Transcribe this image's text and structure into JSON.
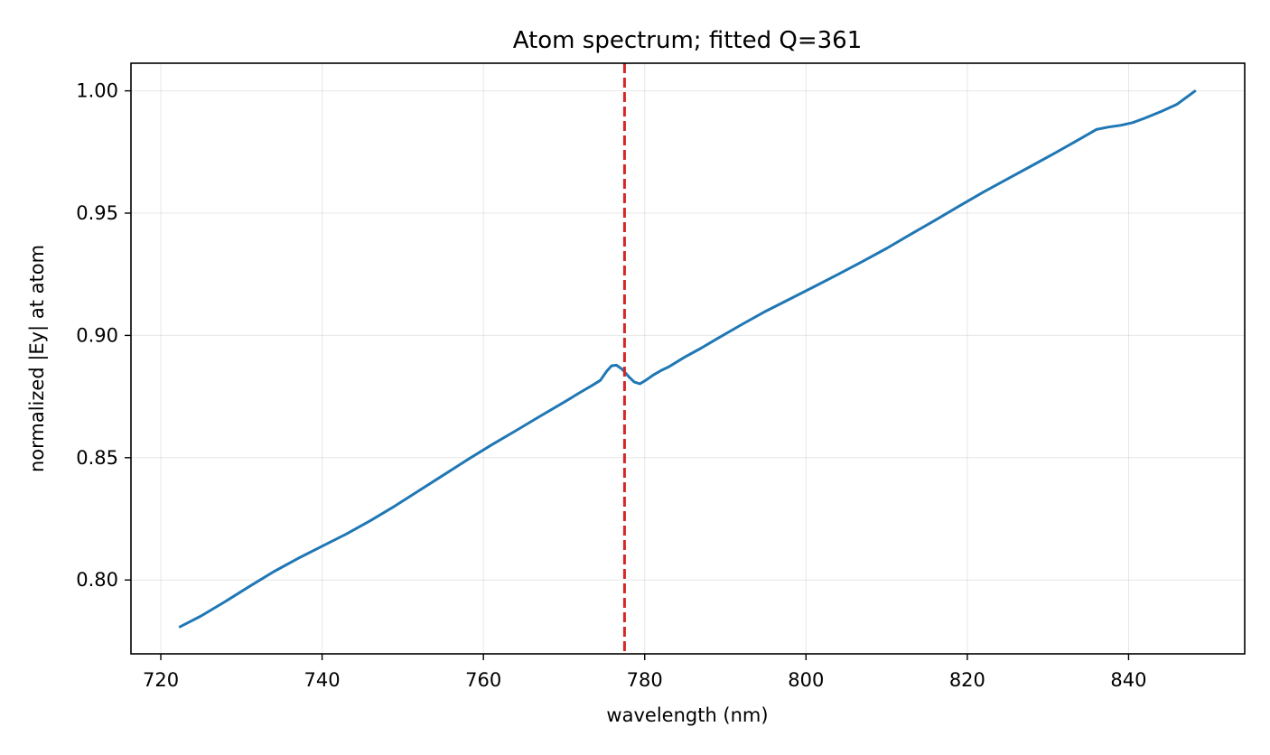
{
  "chart_data": {
    "type": "line",
    "title": "Atom spectrum; fitted Q=361",
    "xlabel": "wavelength (nm)",
    "ylabel": "normalized |Ey| at atom",
    "xlim": [
      716.3,
      854.4
    ],
    "ylim": [
      0.7698,
      1.0113
    ],
    "grid": true,
    "xticks": [
      720,
      740,
      760,
      780,
      800,
      820,
      840
    ],
    "yticks": [
      0.8,
      0.85,
      0.9,
      0.95,
      1.0
    ],
    "xtick_labels": [
      "720",
      "740",
      "760",
      "780",
      "800",
      "820",
      "840"
    ],
    "ytick_labels": [
      "0.80",
      "0.85",
      "0.90",
      "0.95",
      "1.00"
    ],
    "series": [
      {
        "color": "#1f77b4",
        "x": [
          722.4,
          725.0,
          728.0,
          731.0,
          734.0,
          737.0,
          740.0,
          743.0,
          746.0,
          749.0,
          752.0,
          755.0,
          758.0,
          761.0,
          764.0,
          767.0,
          770.0,
          772.0,
          773.5,
          774.5,
          775.3,
          775.9,
          776.5,
          777.2,
          778.0,
          778.7,
          779.4,
          780.2,
          781.0,
          782.0,
          783.0,
          784.0,
          785.0,
          787.0,
          789.0,
          792.0,
          795.0,
          798.0,
          801.0,
          804.0,
          807.0,
          810.0,
          813.0,
          816.0,
          819.0,
          822.0,
          825.0,
          828.0,
          831.0,
          834.0,
          836.0,
          837.5,
          839.0,
          840.5,
          842.0,
          844.0,
          846.0,
          848.2
        ],
        "y": [
          0.7809,
          0.7853,
          0.7912,
          0.7974,
          0.8034,
          0.8088,
          0.8138,
          0.8188,
          0.8243,
          0.8302,
          0.8365,
          0.8428,
          0.8491,
          0.8552,
          0.861,
          0.8669,
          0.8727,
          0.8767,
          0.8796,
          0.8816,
          0.8854,
          0.8876,
          0.8878,
          0.8862,
          0.8832,
          0.881,
          0.8802,
          0.8818,
          0.8837,
          0.8856,
          0.8872,
          0.8892,
          0.8912,
          0.8948,
          0.8987,
          0.9044,
          0.9099,
          0.9149,
          0.9199,
          0.925,
          0.9302,
          0.9356,
          0.9414,
          0.9471,
          0.9529,
          0.9586,
          0.964,
          0.9694,
          0.9748,
          0.9804,
          0.9842,
          0.9852,
          0.9859,
          0.987,
          0.9888,
          0.9915,
          0.9945,
          0.9998
        ]
      }
    ],
    "vlines": [
      {
        "x": 777.5,
        "color": "#d62728",
        "style": "dashed"
      }
    ]
  }
}
